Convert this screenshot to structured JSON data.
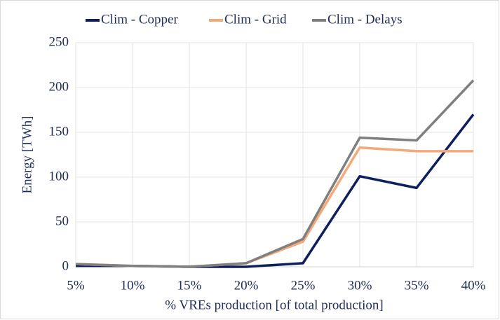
{
  "chart_data": {
    "type": "line",
    "x_label": "% VREs production [of total production]",
    "y_label": "Energy [TWh]",
    "categories": [
      "5%",
      "10%",
      "15%",
      "20%",
      "25%",
      "30%",
      "35%",
      "40%"
    ],
    "series": [
      {
        "name": "Clim - Copper",
        "color": "#0d1f5c",
        "values": [
          1,
          1,
          0,
          0,
          4,
          101,
          88,
          170
        ]
      },
      {
        "name": "Clim - Grid",
        "color": "#f4a97a",
        "values": [
          3,
          1,
          0,
          4,
          28,
          133,
          129,
          129
        ]
      },
      {
        "name": "Clim - Delays",
        "color": "#7f7f7f",
        "values": [
          3,
          1,
          0,
          4,
          31,
          144,
          141,
          208
        ]
      }
    ],
    "ylim": [
      0,
      250
    ],
    "yticks": [
      0,
      50,
      100,
      150,
      200,
      250
    ],
    "grid": true,
    "legend": "top"
  }
}
